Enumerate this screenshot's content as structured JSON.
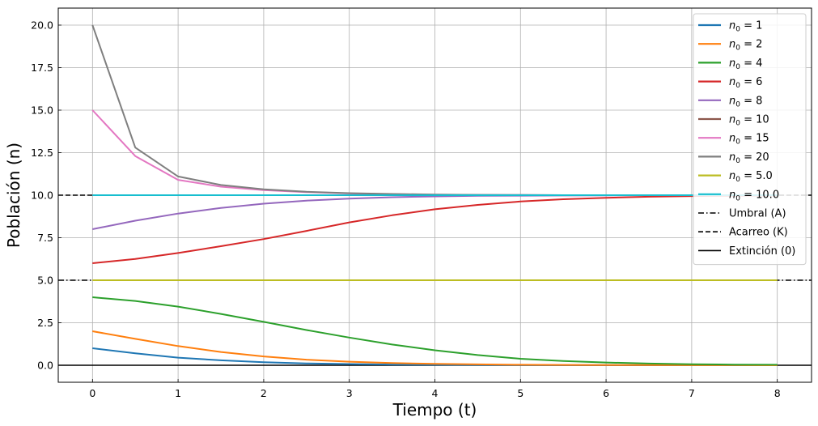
{
  "chart_data": {
    "type": "line",
    "title": "",
    "xlabel": "Tiempo (t)",
    "ylabel": "Población (n)",
    "xlim": [
      -0.4,
      8.4
    ],
    "ylim": [
      -1.0,
      21.0
    ],
    "xticks": [
      0,
      1,
      2,
      3,
      4,
      5,
      6,
      7,
      8
    ],
    "yticks": [
      0.0,
      2.5,
      5.0,
      7.5,
      10.0,
      12.5,
      15.0,
      17.5,
      20.0
    ],
    "xtick_labels": [
      "0",
      "1",
      "2",
      "3",
      "4",
      "5",
      "6",
      "7",
      "8"
    ],
    "ytick_labels": [
      "0.0",
      "2.5",
      "5.0",
      "7.5",
      "10.0",
      "12.5",
      "15.0",
      "17.5",
      "20.0"
    ],
    "grid": true,
    "legend_position": "upper right",
    "x": [
      0,
      0.5,
      1,
      1.5,
      2,
      2.5,
      3,
      3.5,
      4,
      4.5,
      5,
      5.5,
      6,
      6.5,
      7,
      7.5,
      8
    ],
    "series": [
      {
        "legend_sub": "0",
        "legend_rest": " = 1",
        "color": "#1f77b4",
        "style": "solid",
        "values": [
          1.0,
          0.7,
          0.45,
          0.29,
          0.18,
          0.11,
          0.07,
          0.045,
          0.028,
          0.018,
          0.011,
          0.007,
          0.004,
          0.003,
          0.002,
          0.001,
          0.001
        ]
      },
      {
        "legend_sub": "0",
        "legend_rest": " = 2",
        "color": "#ff7f0e",
        "style": "solid",
        "values": [
          2.0,
          1.55,
          1.13,
          0.78,
          0.52,
          0.33,
          0.21,
          0.13,
          0.08,
          0.05,
          0.03,
          0.02,
          0.012,
          0.008,
          0.005,
          0.003,
          0.002
        ]
      },
      {
        "legend_sub": "0",
        "legend_rest": " = 4",
        "color": "#2ca02c",
        "style": "solid",
        "values": [
          4.0,
          3.78,
          3.45,
          3.02,
          2.55,
          2.07,
          1.63,
          1.22,
          0.88,
          0.6,
          0.38,
          0.25,
          0.16,
          0.1,
          0.06,
          0.04,
          0.03
        ]
      },
      {
        "legend_sub": "0",
        "legend_rest": " = 6",
        "color": "#d62728",
        "style": "solid",
        "values": [
          6.0,
          6.25,
          6.6,
          7.0,
          7.42,
          7.9,
          8.4,
          8.82,
          9.17,
          9.43,
          9.63,
          9.76,
          9.85,
          9.91,
          9.95,
          9.97,
          9.98
        ]
      },
      {
        "legend_sub": "0",
        "legend_rest": " = 8",
        "color": "#9467bd",
        "style": "solid",
        "values": [
          8.0,
          8.5,
          8.92,
          9.25,
          9.5,
          9.68,
          9.8,
          9.88,
          9.93,
          9.96,
          9.97,
          9.98,
          9.99,
          10.0,
          10.0,
          10.0,
          10.0
        ]
      },
      {
        "legend_sub": "0",
        "legend_rest": " = 10",
        "color": "#8c564b",
        "style": "solid",
        "values": [
          10,
          10,
          10,
          10,
          10,
          10,
          10,
          10,
          10,
          10,
          10,
          10,
          10,
          10,
          10,
          10,
          10
        ]
      },
      {
        "legend_sub": "0",
        "legend_rest": " = 15",
        "color": "#e377c2",
        "style": "solid",
        "values": [
          15.0,
          12.3,
          10.9,
          10.5,
          10.3,
          10.18,
          10.1,
          10.06,
          10.03,
          10.02,
          10.01,
          10.0,
          10.0,
          10.0,
          10.0,
          10.0,
          10.0
        ]
      },
      {
        "legend_sub": "0",
        "legend_rest": " = 20",
        "color": "#7f7f7f",
        "style": "solid",
        "values": [
          20.0,
          12.8,
          11.1,
          10.6,
          10.35,
          10.2,
          10.12,
          10.07,
          10.04,
          10.02,
          10.01,
          10.0,
          10.0,
          10.0,
          10.0,
          10.0,
          10.0
        ]
      },
      {
        "legend_sub": "0",
        "legend_rest": " = 5.0",
        "color": "#bcbd22",
        "style": "solid",
        "values": [
          5,
          5,
          5,
          5,
          5,
          5,
          5,
          5,
          5,
          5,
          5,
          5,
          5,
          5,
          5,
          5,
          5
        ]
      },
      {
        "legend_sub": "0",
        "legend_rest": " = 10.0",
        "color": "#17becf",
        "style": "solid",
        "values": [
          10,
          10,
          10,
          10,
          10,
          10,
          10,
          10,
          10,
          10,
          10,
          10,
          10,
          10,
          10,
          10,
          10
        ]
      }
    ],
    "hlines": [
      {
        "name": "Umbral (A)",
        "y": 5.0,
        "color": "#000000",
        "style": "dashdot"
      },
      {
        "name": "Acarreo (K)",
        "y": 10.0,
        "color": "#000000",
        "style": "dashed"
      },
      {
        "name": "Extinción (0)",
        "y": 0.0,
        "color": "#000000",
        "style": "solid"
      }
    ],
    "legend_prefix": "n"
  }
}
